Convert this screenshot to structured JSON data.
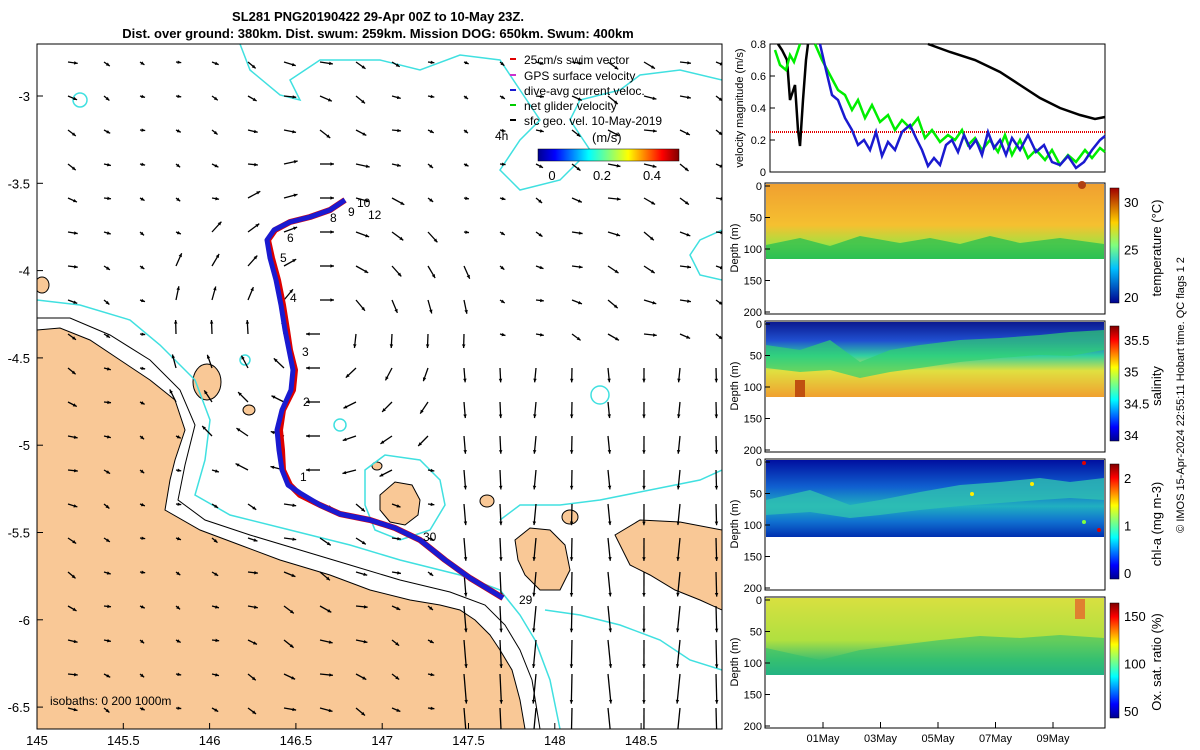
{
  "title": {
    "line1": "SL281 PNG20190422 29-Apr 00Z to 10-May 23Z.",
    "line2": "Dist. over ground: 380km. Dist. swum: 259km. Mission DOG: 650km. Swum: 400km"
  },
  "map": {
    "x_ticks": [
      "145",
      "145.5",
      "146",
      "146.5",
      "147",
      "147.5",
      "148",
      "148.5"
    ],
    "y_ticks": [
      "-3",
      "-3.5",
      "-4",
      "-4.5",
      "-5",
      "-5.5",
      "-6",
      "-6.5"
    ],
    "legend": [
      {
        "label": "25cm/s swim vector",
        "color": "#e00000"
      },
      {
        "label": "GPS surface velocity",
        "color": "#cc33cc"
      },
      {
        "label": "dive-avg current veloc.",
        "color": "#1a1ad0"
      },
      {
        "label": "net glider velocity",
        "color": "#00cc00"
      },
      {
        "label": "sfc geo. vel. 10-May-2019",
        "color": "#000000"
      }
    ],
    "offset_label": "4h",
    "colorbar_title": "(m/s)",
    "colorbar_ticks": [
      "0",
      "0.2",
      "0.4"
    ],
    "isobaths_label": "isobaths: 0   200  1000m",
    "day_labels": [
      "10",
      "9",
      "12",
      "8",
      "6",
      "5",
      "4",
      "3",
      "2",
      "1",
      "30",
      "29"
    ]
  },
  "velocity_panel": {
    "ylabel": "velocity magnitude (m/s)",
    "y_ticks": [
      "0",
      "0.2",
      "0.4",
      "0.6",
      "0.8"
    ]
  },
  "sections": [
    {
      "name": "temperature",
      "cbar_label": "temperature (°C)",
      "cbar_ticks": [
        "30",
        "25",
        "20"
      ],
      "ylabel": "Depth (m)",
      "y_ticks": [
        "0",
        "50",
        "100",
        "150",
        "200"
      ]
    },
    {
      "name": "salinity",
      "cbar_label": "salinity",
      "cbar_ticks": [
        "35.5",
        "35",
        "34.5",
        "34"
      ],
      "ylabel": "Depth (m)",
      "y_ticks": [
        "0",
        "50",
        "100",
        "150",
        "200"
      ]
    },
    {
      "name": "chla",
      "cbar_label": "chl-a (mg m-3)",
      "cbar_ticks": [
        "2",
        "1",
        "0"
      ],
      "ylabel": "Depth (m)",
      "y_ticks": [
        "0",
        "50",
        "100",
        "150",
        "200"
      ]
    },
    {
      "name": "oxygen",
      "cbar_label": "Ox. sat. ratio (%)",
      "cbar_ticks": [
        "150",
        "100",
        "50"
      ],
      "ylabel": "Depth (m)",
      "y_ticks": [
        "0",
        "50",
        "100",
        "150",
        "200"
      ]
    }
  ],
  "time_axis": {
    "ticks": [
      "01May",
      "03May",
      "05May",
      "07May",
      "09May"
    ]
  },
  "footer_vertical": "© IMOS 15-Apr-2024 22:55:11 Hobart time. QC flags 1  2"
}
